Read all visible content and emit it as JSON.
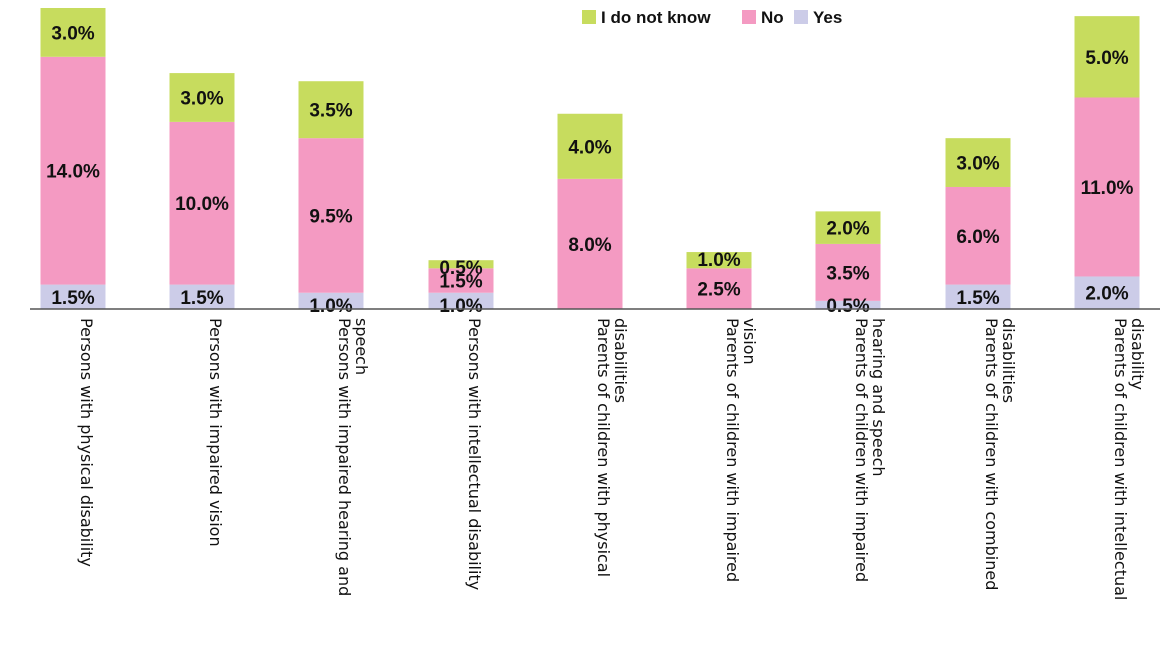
{
  "chart_data": {
    "type": "bar",
    "stacked": true,
    "title": "",
    "xlabel": "",
    "ylabel": "",
    "ylim": [
      0,
      22
    ],
    "grid": false,
    "legend_position": "top-right",
    "categories": [
      [
        "Persons with physical disability"
      ],
      [
        "Persons with impaired vision"
      ],
      [
        "Persons with impaired hearing and",
        "speech"
      ],
      [
        "Persons with intellectual disability"
      ],
      [
        "Parents of children with physical",
        "disabilities"
      ],
      [
        "Parents of children with impaired",
        "vision"
      ],
      [
        "Parents of children with impaired",
        "hearing and speech"
      ],
      [
        "Parents of children with combined",
        "disabilities"
      ],
      [
        "Parents of children with intellectual",
        "disability"
      ]
    ],
    "series": [
      {
        "name": "Yes",
        "color": "#cccce8",
        "values": [
          1.5,
          1.5,
          1.0,
          1.0,
          0,
          0,
          0.5,
          1.5,
          2.0
        ],
        "labels": [
          "1.5%",
          "1.5%",
          "1.0%",
          "1.0%",
          "",
          "",
          "0.5%",
          "1.5%",
          "2.0%"
        ]
      },
      {
        "name": "No",
        "color": "#f49ac2",
        "values": [
          14.0,
          10.0,
          9.5,
          1.5,
          8.0,
          2.5,
          3.5,
          6.0,
          11.0
        ],
        "labels": [
          "14.0%",
          "10.0%",
          "9.5%",
          "1.5%",
          "8.0%",
          "2.5%",
          "3.5%",
          "6.0%",
          "11.0%"
        ]
      },
      {
        "name": "I do not know",
        "color": "#c7dc5e",
        "values": [
          3.0,
          3.0,
          3.5,
          0.5,
          4.0,
          1.0,
          2.0,
          3.0,
          5.0
        ],
        "labels": [
          "3.0%",
          "3.0%",
          "3.5%",
          "0.5%",
          "4.0%",
          "1.0%",
          "2.0%",
          "3.0%",
          "5.0%"
        ]
      }
    ],
    "legend": [
      {
        "name": "I do not know",
        "color": "#c7dc5e"
      },
      {
        "name": "No",
        "color": "#f49ac2"
      },
      {
        "name": "Yes",
        "color": "#cccce8"
      }
    ]
  }
}
